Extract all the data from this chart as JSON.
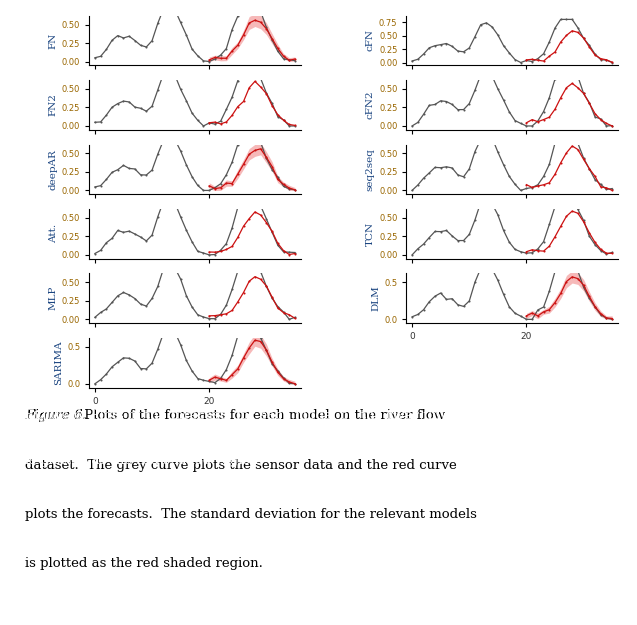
{
  "left_labels": [
    "FN",
    "FN2",
    "deepAR",
    "Att.",
    "MLP",
    "SARIMA"
  ],
  "right_labels": [
    "cFN",
    "cFN2",
    "seq2seq",
    "TCN",
    "DLM"
  ],
  "caption_italic": "Figure 6.",
  "caption_normal": " Plots of the forecasts for each model on the river flow\ndataset.  The grey curve plots the sensor data and the red curve\nplots the forecasts.  The standard deviation for the relevant models\nis plotted as the red shaded region.",
  "grey_color": "#555555",
  "red_color": "#cc1111",
  "red_fill_color": "#f08080",
  "label_color": "#1a4480",
  "tick_color": "#996600",
  "has_std": {
    "FN": true,
    "FN2": false,
    "deepAR": true,
    "Att.": false,
    "MLP": false,
    "SARIMA": true,
    "cFN": false,
    "cFN2": false,
    "seq2seq": false,
    "TCN": false,
    "DLM": true
  },
  "yticks_left": {
    "FN": [
      0.0,
      0.25,
      0.5
    ],
    "FN2": [
      0.0,
      0.25,
      0.5
    ],
    "deepAR": [
      0.0,
      0.25,
      0.5
    ],
    "Att.": [
      0.0,
      0.25,
      0.5
    ],
    "MLP": [
      0.0,
      0.25,
      0.5
    ],
    "SARIMA": [
      0.0,
      0.5
    ]
  },
  "yticks_right": {
    "cFN": [
      0.0,
      0.25,
      0.5,
      0.75
    ],
    "cFN2": [
      0.0,
      0.25,
      0.5
    ],
    "seq2seq": [
      0.0,
      0.25,
      0.5
    ],
    "TCN": [
      0.0,
      0.25,
      0.5
    ],
    "DLM": [
      0.0,
      0.5
    ]
  },
  "xlim": [
    -1,
    36
  ],
  "xticks": [
    0,
    20
  ],
  "n_points": 36
}
